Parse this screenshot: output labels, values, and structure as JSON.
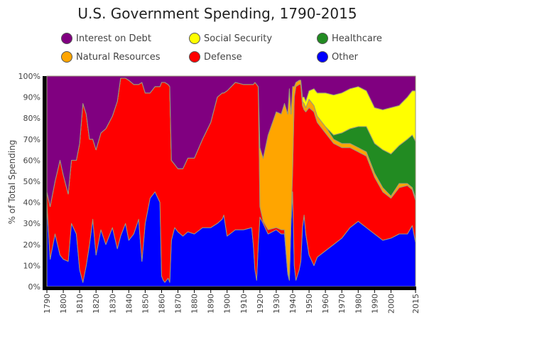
{
  "chart_data": {
    "type": "area",
    "stacked": true,
    "normalized_percent": true,
    "title": "U.S. Government Spending, 1790-2015",
    "xlabel": "",
    "ylabel": "% of Total Spending",
    "xlim": [
      1790,
      2015
    ],
    "ylim": [
      0,
      100
    ],
    "x_ticks": [
      1790,
      1800,
      1810,
      1820,
      1830,
      1840,
      1850,
      1860,
      1870,
      1880,
      1890,
      1900,
      1910,
      1920,
      1930,
      1940,
      1950,
      1960,
      1970,
      1980,
      1990,
      2000,
      2015
    ],
    "y_ticks": [
      "0%",
      "10%",
      "20%",
      "30%",
      "40%",
      "50%",
      "60%",
      "70%",
      "80%",
      "90%",
      "100%"
    ],
    "legend": [
      {
        "name": "Interest on Debt",
        "color": "#800080"
      },
      {
        "name": "Social Security",
        "color": "#ffff00"
      },
      {
        "name": "Healthcare",
        "color": "#228b22"
      },
      {
        "name": "Natural Resources",
        "color": "#ffa500"
      },
      {
        "name": "Defense",
        "color": "#ff0000"
      },
      {
        "name": "Other",
        "color": "#0000ff"
      }
    ],
    "x": [
      1790,
      1792,
      1795,
      1798,
      1800,
      1803,
      1805,
      1808,
      1810,
      1812,
      1814,
      1816,
      1818,
      1820,
      1823,
      1826,
      1830,
      1833,
      1835,
      1838,
      1840,
      1843,
      1846,
      1848,
      1850,
      1853,
      1856,
      1859,
      1860,
      1861,
      1862,
      1864,
      1865,
      1866,
      1868,
      1870,
      1873,
      1876,
      1880,
      1885,
      1890,
      1894,
      1897,
      1898,
      1900,
      1905,
      1910,
      1915,
      1916,
      1917,
      1918,
      1919,
      1920,
      1922,
      1925,
      1930,
      1933,
      1935,
      1937,
      1938,
      1939,
      1940,
      1941,
      1942,
      1944,
      1945,
      1946,
      1947,
      1948,
      1950,
      1953,
      1955,
      1960,
      1965,
      1970,
      1975,
      1980,
      1985,
      1990,
      1995,
      2000,
      2005,
      2010,
      2013,
      2015
    ],
    "series": [
      {
        "name": "Other",
        "color": "#0000ff",
        "values": [
          40,
          13,
          25,
          15,
          13,
          12,
          30,
          25,
          8,
          2,
          10,
          20,
          32,
          15,
          27,
          20,
          28,
          18,
          24,
          30,
          22,
          25,
          32,
          12,
          30,
          42,
          45,
          40,
          5,
          3,
          2,
          4,
          2,
          22,
          28,
          26,
          24,
          26,
          25,
          28,
          28,
          30,
          32,
          34,
          24,
          27,
          27,
          28,
          20,
          8,
          3,
          20,
          33,
          30,
          25,
          27,
          25,
          25,
          6,
          3,
          30,
          45,
          10,
          3,
          8,
          12,
          28,
          34,
          25,
          15,
          10,
          14,
          17,
          20,
          23,
          28,
          31,
          28,
          25,
          22,
          23,
          25,
          25,
          29,
          21
        ]
      },
      {
        "name": "Defense",
        "color": "#ff0000",
        "values": [
          5,
          25,
          25,
          45,
          40,
          32,
          30,
          35,
          60,
          85,
          72,
          50,
          38,
          50,
          46,
          55,
          53,
          70,
          75,
          69,
          76,
          71,
          64,
          85,
          62,
          50,
          50,
          55,
          92,
          94,
          95,
          92,
          93,
          38,
          30,
          30,
          32,
          35,
          36,
          42,
          50,
          60,
          60,
          58,
          69,
          70,
          69,
          68,
          76,
          89,
          93,
          75,
          5,
          1,
          2,
          1,
          2,
          2,
          1,
          1,
          2,
          10,
          80,
          92,
          88,
          84,
          58,
          50,
          58,
          70,
          73,
          64,
          56,
          48,
          43,
          38,
          33,
          34,
          27,
          23,
          19,
          22,
          23,
          17,
          20
        ]
      },
      {
        "name": "Natural Resources",
        "color": "#ffa500",
        "values": [
          0,
          0,
          0,
          0,
          0,
          0,
          0,
          0,
          0,
          0,
          0,
          0,
          0,
          0,
          0,
          0,
          0,
          0,
          0,
          0,
          0,
          0,
          0,
          0,
          0,
          0,
          0,
          0,
          0,
          0,
          0,
          0,
          0,
          0,
          0,
          0,
          0,
          0,
          0,
          0,
          0,
          0,
          0,
          0,
          0,
          0,
          0,
          0,
          0,
          0,
          0,
          0,
          28,
          30,
          45,
          55,
          55,
          60,
          75,
          90,
          50,
          40,
          5,
          2,
          2,
          2,
          2,
          3,
          2,
          4,
          3,
          3,
          3,
          2,
          2,
          2,
          2,
          2,
          2,
          2,
          1,
          2,
          1,
          1,
          1
        ]
      },
      {
        "name": "Healthcare",
        "color": "#228b22",
        "values": [
          0,
          0,
          0,
          0,
          0,
          0,
          0,
          0,
          0,
          0,
          0,
          0,
          0,
          0,
          0,
          0,
          0,
          0,
          0,
          0,
          0,
          0,
          0,
          0,
          0,
          0,
          0,
          0,
          0,
          0,
          0,
          0,
          0,
          0,
          0,
          0,
          0,
          0,
          0,
          0,
          0,
          0,
          0,
          0,
          0,
          0,
          0,
          0,
          0,
          0,
          0,
          0,
          0,
          0,
          0,
          0,
          0,
          0,
          0,
          0,
          0,
          0,
          0,
          0,
          0,
          0,
          0,
          0,
          0,
          0,
          0,
          0,
          0,
          2,
          5,
          7,
          10,
          12,
          14,
          18,
          20,
          18,
          21,
          25,
          27
        ]
      },
      {
        "name": "Social Security",
        "color": "#ffff00",
        "values": [
          0,
          0,
          0,
          0,
          0,
          0,
          0,
          0,
          0,
          0,
          0,
          0,
          0,
          0,
          0,
          0,
          0,
          0,
          0,
          0,
          0,
          0,
          0,
          0,
          0,
          0,
          0,
          0,
          0,
          0,
          0,
          0,
          0,
          0,
          0,
          0,
          0,
          0,
          0,
          0,
          0,
          0,
          0,
          0,
          0,
          0,
          0,
          0,
          0,
          0,
          0,
          0,
          0,
          0,
          0,
          0,
          0,
          0,
          0,
          0,
          0,
          0,
          0,
          0,
          0,
          0,
          2,
          3,
          3,
          4,
          8,
          11,
          16,
          19,
          19,
          19,
          19,
          17,
          17,
          19,
          22,
          19,
          20,
          21,
          24
        ]
      },
      {
        "name": "Interest on Debt",
        "color": "#800080",
        "values": [
          55,
          62,
          50,
          40,
          47,
          56,
          40,
          40,
          32,
          13,
          18,
          30,
          30,
          35,
          27,
          25,
          19,
          12,
          1,
          1,
          2,
          4,
          4,
          3,
          8,
          8,
          5,
          5,
          3,
          3,
          3,
          4,
          5,
          40,
          42,
          44,
          44,
          39,
          39,
          30,
          22,
          10,
          8,
          8,
          7,
          3,
          4,
          4,
          4,
          3,
          4,
          5,
          34,
          39,
          28,
          17,
          18,
          13,
          18,
          6,
          18,
          5,
          5,
          3,
          2,
          2,
          10,
          10,
          12,
          7,
          6,
          8,
          8,
          9,
          8,
          6,
          5,
          7,
          15,
          16,
          15,
          14,
          10,
          7,
          7
        ]
      }
    ]
  }
}
